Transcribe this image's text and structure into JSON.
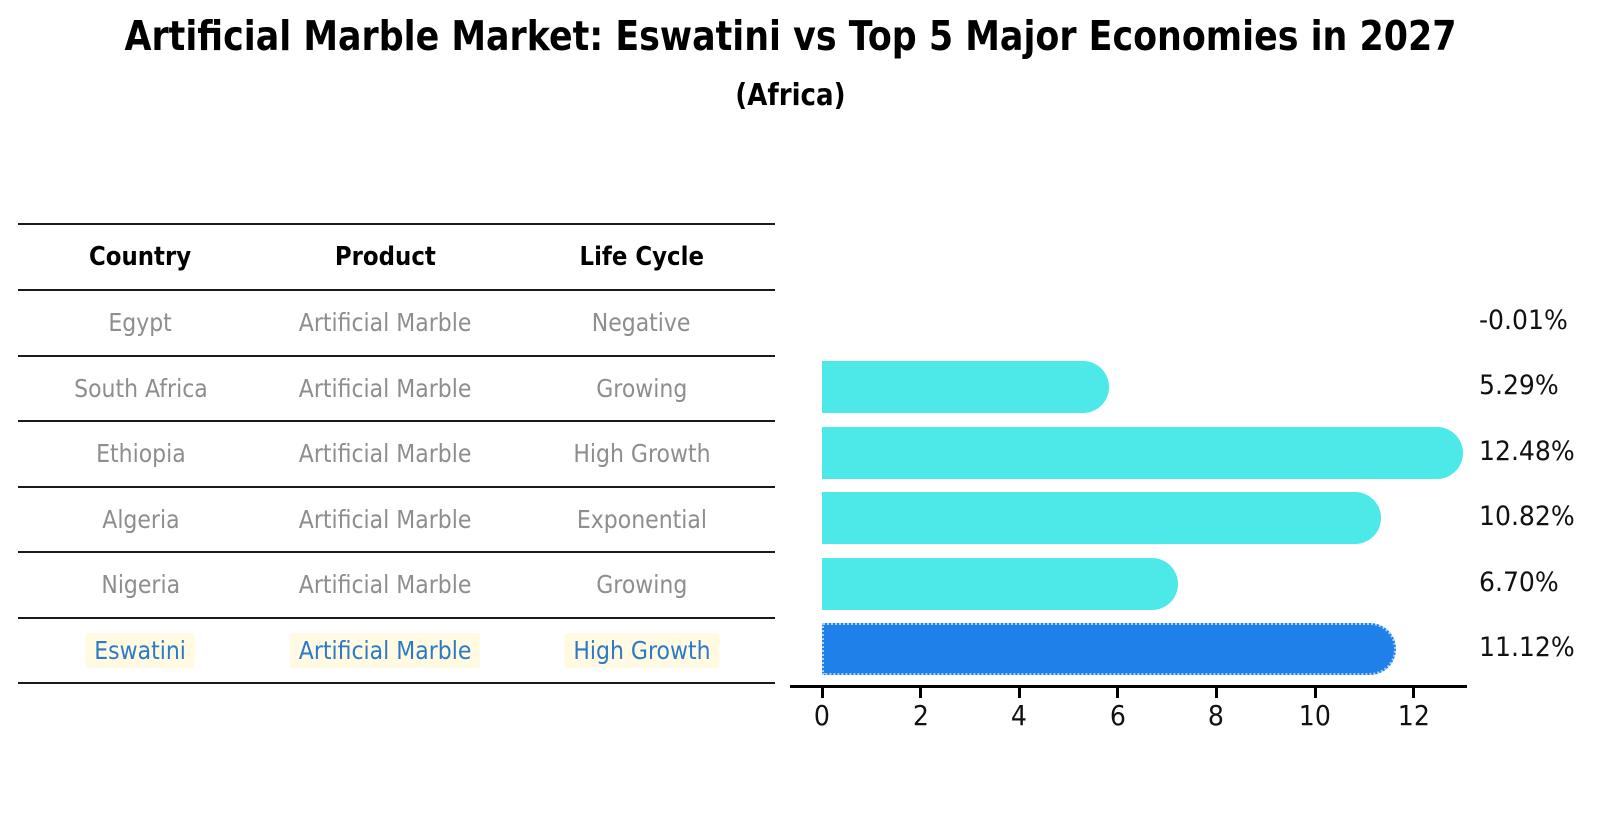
{
  "chart": {
    "title": "Artificial Marble Market: Eswatini vs Top 5 Major Economies in 2027",
    "subtitle": "(Africa)"
  },
  "table": {
    "headers": [
      "Country",
      "Product",
      "Life Cycle"
    ],
    "rows": [
      {
        "country": "Egypt",
        "product": "Artificial Marble",
        "life_cycle": "Negative",
        "highlight": false
      },
      {
        "country": "South Africa",
        "product": "Artificial Marble",
        "life_cycle": "Growing",
        "highlight": false
      },
      {
        "country": "Ethiopia",
        "product": "Artificial Marble",
        "life_cycle": "High Growth",
        "highlight": false
      },
      {
        "country": "Algeria",
        "product": "Artificial Marble",
        "life_cycle": "Exponential",
        "highlight": false
      },
      {
        "country": "Nigeria",
        "product": "Artificial Marble",
        "life_cycle": "Growing",
        "highlight": true
      }
    ],
    "highlight_row": {
      "country": "Eswatini",
      "product": "Artificial Marble",
      "life_cycle": "High Growth"
    }
  },
  "chart_data": {
    "type": "bar",
    "orientation": "horizontal",
    "categories": [
      "Egypt",
      "South Africa",
      "Ethiopia",
      "Algeria",
      "Nigeria",
      "Eswatini"
    ],
    "values": [
      -0.01,
      5.29,
      12.48,
      10.82,
      6.7,
      11.12
    ],
    "value_labels": [
      "-0.01%",
      "5.29%",
      "12.48%",
      "10.82%",
      "6.70%",
      "11.12%"
    ],
    "x_ticks": [
      0,
      2,
      4,
      6,
      8,
      10,
      12
    ],
    "xlim": [
      -0.65,
      13.1
    ],
    "grid": false,
    "legend": false,
    "highlight_index": 5,
    "bar_color": "#4de8e8",
    "highlight_bar_color": "#1e80e8",
    "highlight_text_color": "#2c7bc9",
    "text_color": "#8e8e8e",
    "axis_color": "#000000",
    "title": "Artificial Marble Market: Eswatini vs Top 5 Major Economies in 2027",
    "subtitle": "(Africa)"
  }
}
